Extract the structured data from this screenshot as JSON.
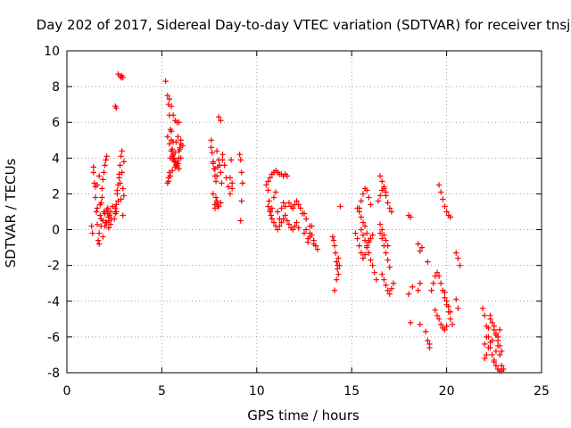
{
  "chart_data": {
    "type": "scatter",
    "title": "Day 202 of 2017, Sidereal Day-to-day VTEC variation (SDTVAR) for receiver tnsj",
    "xlabel": "GPS time / hours",
    "ylabel": "SDTVAR / TECUs",
    "xlim": [
      0,
      25
    ],
    "ylim": [
      -8,
      10
    ],
    "xticks": [
      0,
      5,
      10,
      15,
      20,
      25
    ],
    "yticks": [
      -8,
      -6,
      -4,
      -2,
      0,
      2,
      4,
      6,
      8,
      10
    ],
    "grid": true,
    "legend": "none",
    "marker": "+",
    "color": "#ff0000",
    "series": [
      {
        "x": [
          1.3,
          1.35,
          1.4,
          1.4,
          1.45,
          1.5,
          1.55,
          1.6,
          1.65,
          1.7,
          1.75,
          1.8,
          1.85,
          1.9,
          1.95,
          2.0,
          2.05,
          2.1,
          2.15,
          2.2,
          2.25,
          2.3,
          2.35,
          2.4,
          1.5,
          1.6,
          1.7,
          1.8,
          1.9,
          2.0,
          2.1,
          2.2,
          1.6,
          1.7,
          1.8,
          1.9,
          2.0,
          2.1,
          2.2,
          2.3,
          1.75,
          1.85,
          1.95,
          2.05,
          2.15,
          2.5,
          2.55,
          2.6,
          2.65,
          2.7,
          2.75,
          2.8,
          2.85,
          2.9,
          2.95,
          3.0,
          2.6,
          2.7,
          2.8,
          2.9,
          3.0,
          2.55,
          2.65,
          2.75,
          2.85,
          2.95,
          2.55,
          2.6,
          2.7,
          2.8,
          2.85,
          2.9,
          2.95,
          5.2,
          5.3,
          5.35,
          5.4,
          5.45,
          5.5,
          5.55,
          5.6,
          5.65,
          5.7,
          5.75,
          5.8,
          5.85,
          5.9,
          5.95,
          6.0,
          5.4,
          5.5,
          5.6,
          5.7,
          5.8,
          5.9,
          5.3,
          5.4,
          5.5,
          5.6,
          5.7,
          5.8,
          5.9,
          6.0,
          5.35,
          5.45,
          5.55,
          5.65,
          5.75,
          5.85,
          5.95,
          5.5,
          5.6,
          5.7,
          5.8,
          5.9,
          6.0,
          6.1,
          5.3,
          5.35,
          5.4,
          5.45,
          5.5,
          5.55,
          7.6,
          7.7,
          7.75,
          7.8,
          7.85,
          7.9,
          7.95,
          8.0,
          8.05,
          8.1,
          8.15,
          8.2,
          8.3,
          8.4,
          8.5,
          8.6,
          8.7,
          7.7,
          7.8,
          7.9,
          8.0,
          8.1,
          7.6,
          7.65,
          7.7,
          7.8,
          7.9,
          8.0,
          8.1,
          8.2,
          7.8,
          7.85,
          7.9,
          7.95,
          8.6,
          8.7,
          8.65,
          9.1,
          9.15,
          9.2,
          9.25,
          9.2,
          9.15,
          10.5,
          10.6,
          10.7,
          10.8,
          10.9,
          11.0,
          11.1,
          11.2,
          11.3,
          11.4,
          11.5,
          11.6,
          11.7,
          11.8,
          11.9,
          12.0,
          12.1,
          12.2,
          12.3,
          12.4,
          12.5,
          10.6,
          10.7,
          10.8,
          10.9,
          11.0,
          11.1,
          11.2,
          11.3,
          11.4,
          11.5,
          11.6,
          11.7,
          11.8,
          11.9,
          12.0,
          12.1,
          12.2,
          10.6,
          10.65,
          10.7,
          10.75,
          10.8,
          10.9,
          11.0,
          11.1,
          11.2,
          11.3,
          11.4,
          11.5,
          12.5,
          12.6,
          12.7,
          12.8,
          12.9,
          13.0,
          13.1,
          13.2,
          12.7,
          12.8,
          12.9,
          13.0,
          12.6,
          12.8,
          14.0,
          14.05,
          14.1,
          14.15,
          14.2,
          14.25,
          14.3,
          14.35,
          14.1,
          14.2,
          14.3,
          14.25,
          14.4,
          15.2,
          15.3,
          15.4,
          15.5,
          15.6,
          15.7,
          15.8,
          15.9,
          16.0,
          16.1,
          15.3,
          15.4,
          15.5,
          15.6,
          15.7,
          15.8,
          15.9,
          15.4,
          15.5,
          15.6,
          15.7,
          15.8,
          15.9,
          16.0,
          15.5,
          15.6,
          15.7,
          15.8,
          15.9,
          16.0,
          16.1,
          16.2,
          16.3,
          16.5,
          16.6,
          16.7,
          16.8,
          16.9,
          17.0,
          17.1,
          16.5,
          16.6,
          16.7,
          16.8,
          16.9,
          17.0,
          16.6,
          16.7,
          16.8,
          16.9,
          17.0,
          17.1,
          17.2,
          16.4,
          16.5,
          16.6,
          16.7,
          16.8,
          16.5,
          16.6,
          16.7,
          16.8,
          16.9,
          18.0,
          18.1,
          18.0,
          18.2,
          18.1,
          18.5,
          18.6,
          18.7,
          18.5,
          18.6,
          18.6,
          18.9,
          19.0,
          19.1,
          19.1,
          19.0,
          19.2,
          19.3,
          19.4,
          19.5,
          19.6,
          19.7,
          19.8,
          19.9,
          20.0,
          20.1,
          20.2,
          20.3,
          19.4,
          19.5,
          19.6,
          19.7,
          19.8,
          19.9,
          20.0,
          19.6,
          19.7,
          19.8,
          19.9,
          20.0,
          20.1,
          20.2,
          19.9,
          20.0,
          20.1,
          20.2,
          20.5,
          20.6,
          20.7,
          20.6,
          20.5,
          21.9,
          22.0,
          22.1,
          22.2,
          22.3,
          22.4,
          22.5,
          22.6,
          22.7,
          22.8,
          22.9,
          23.0,
          22.0,
          22.1,
          22.2,
          22.3,
          22.4,
          22.5,
          22.6,
          22.7,
          22.8,
          22.9,
          22.3,
          22.4,
          22.5,
          22.6,
          22.7,
          22.8,
          22.9,
          22.0,
          22.1,
          22.2,
          22.3,
          22.5,
          22.6,
          22.7,
          22.8
        ],
        "y": [
          0.2,
          -0.2,
          3.5,
          3.2,
          2.6,
          2.4,
          1.0,
          0.3,
          -0.6,
          -0.2,
          0.8,
          1.5,
          2.3,
          2.8,
          3.2,
          3.6,
          3.9,
          4.1,
          1.2,
          0.5,
          0.8,
          1.0,
          0.6,
          1.3,
          1.8,
          1.2,
          -0.8,
          0.2,
          0.5,
          0.9,
          0.4,
          0.1,
          2.5,
          3.0,
          0.6,
          -0.4,
          0.2,
          1.1,
          0.7,
          0.3,
          1.4,
          1.8,
          1.0,
          0.4,
          0.9,
          0.6,
          0.9,
          1.4,
          2.0,
          2.5,
          3.1,
          3.6,
          4.1,
          4.4,
          2.3,
          1.9,
          1.0,
          1.6,
          2.6,
          3.2,
          3.8,
          1.2,
          2.2,
          2.9,
          1.7,
          0.8,
          6.9,
          6.8,
          8.7,
          8.6,
          8.5,
          8.6,
          8.5,
          8.3,
          7.5,
          7.0,
          6.4,
          5.6,
          5.0,
          4.5,
          4.2,
          4.0,
          3.8,
          3.6,
          3.5,
          3.7,
          4.0,
          4.5,
          4.8,
          7.3,
          6.9,
          6.4,
          6.1,
          6.0,
          6.0,
          5.2,
          4.8,
          4.4,
          3.9,
          3.5,
          3.8,
          4.4,
          5.0,
          2.7,
          3.0,
          3.3,
          3.8,
          4.9,
          5.2,
          4.6,
          5.5,
          4.9,
          4.3,
          3.6,
          3.4,
          4.0,
          4.7,
          2.6,
          2.9,
          3.2,
          4.0,
          4.4,
          4.1,
          4.6,
          3.7,
          3.4,
          3.0,
          2.7,
          3.0,
          3.5,
          3.9,
          3.6,
          3.2,
          2.6,
          3.9,
          3.6,
          2.9,
          2.4,
          2.0,
          2.3,
          2.0,
          1.4,
          1.6,
          1.3,
          1.5,
          5.0,
          4.3,
          3.8,
          3.4,
          4.4,
          6.3,
          6.1,
          4.2,
          1.2,
          1.8,
          1.5,
          1.3,
          2.9,
          2.6,
          3.9,
          4.2,
          3.9,
          3.2,
          2.6,
          1.6,
          0.5,
          2.5,
          2.7,
          2.9,
          3.1,
          3.2,
          3.3,
          3.2,
          3.1,
          3.1,
          3.0,
          3.1,
          3.0,
          1.5,
          1.3,
          1.2,
          1.4,
          1.6,
          1.4,
          1.2,
          0.9,
          0.9,
          1.3,
          1.0,
          0.6,
          0.4,
          0.2,
          0.0,
          0.2,
          0.4,
          0.6,
          0.8,
          0.5,
          0.3,
          0.1,
          0.0,
          0.2,
          0.4,
          0.1,
          2.2,
          1.6,
          1.1,
          0.8,
          1.2,
          1.8,
          2.1,
          1.0,
          0.6,
          1.2,
          1.5,
          1.3,
          -0.2,
          0.0,
          -0.5,
          -0.2,
          0.2,
          -0.6,
          -0.9,
          -1.1,
          -0.7,
          -0.4,
          -0.3,
          -0.8,
          0.6,
          0.2,
          -0.4,
          -0.6,
          -0.9,
          -1.3,
          -1.8,
          -2.2,
          -2.5,
          -2.0,
          -3.4,
          -2.8,
          -1.6,
          -2.0,
          1.3,
          -0.2,
          -0.5,
          -0.9,
          -1.3,
          -1.6,
          -1.4,
          -1.0,
          -0.7,
          -0.5,
          -0.3,
          1.2,
          1.0,
          0.7,
          0.4,
          0.2,
          -0.2,
          -0.6,
          1.2,
          1.6,
          2.0,
          2.3,
          2.2,
          1.8,
          1.4,
          0.0,
          -0.3,
          -0.6,
          -0.9,
          -1.3,
          -1.7,
          -2.0,
          -2.4,
          -2.8,
          3.0,
          2.7,
          2.3,
          1.9,
          1.5,
          1.2,
          1.0,
          -0.2,
          -0.5,
          -0.9,
          -1.3,
          -1.7,
          -2.1,
          -2.5,
          -2.8,
          -3.1,
          -3.4,
          -3.6,
          -3.3,
          -3.0,
          1.6,
          1.9,
          2.2,
          2.4,
          2.1,
          0.3,
          0.0,
          -0.3,
          -0.6,
          -0.9,
          0.8,
          0.7,
          -3.6,
          -3.2,
          -5.2,
          -0.8,
          -1.2,
          -1.0,
          -3.4,
          -3.0,
          -5.3,
          -5.7,
          -6.2,
          -6.4,
          -6.6,
          -1.8,
          -3.4,
          -3.0,
          -2.6,
          -2.4,
          -2.6,
          -3.0,
          -3.4,
          -3.8,
          -4.2,
          -4.6,
          -5.0,
          -5.3,
          -4.5,
          -4.8,
          -5.0,
          -5.3,
          -5.5,
          -5.6,
          -5.4,
          2.5,
          2.1,
          1.7,
          1.3,
          1.0,
          0.8,
          0.7,
          -3.5,
          -4.0,
          -4.3,
          -4.6,
          -1.3,
          -1.6,
          -2.0,
          -4.4,
          -3.9,
          -4.4,
          -4.8,
          -5.4,
          -6.0,
          -6.6,
          -7.0,
          -7.4,
          -7.6,
          -7.8,
          -7.9,
          -7.9,
          -7.8,
          -7.2,
          -7.0,
          -6.6,
          -6.3,
          -6.2,
          -7.3,
          -6.8,
          -6.5,
          -7.0,
          -7.6,
          -4.8,
          -5.2,
          -5.6,
          -5.9,
          -6.2,
          -6.5,
          -6.8,
          -6.4,
          -6.0,
          -5.5,
          -5.0,
          -5.4,
          -5.8,
          -6.0,
          -5.6
        ]
      }
    ]
  }
}
